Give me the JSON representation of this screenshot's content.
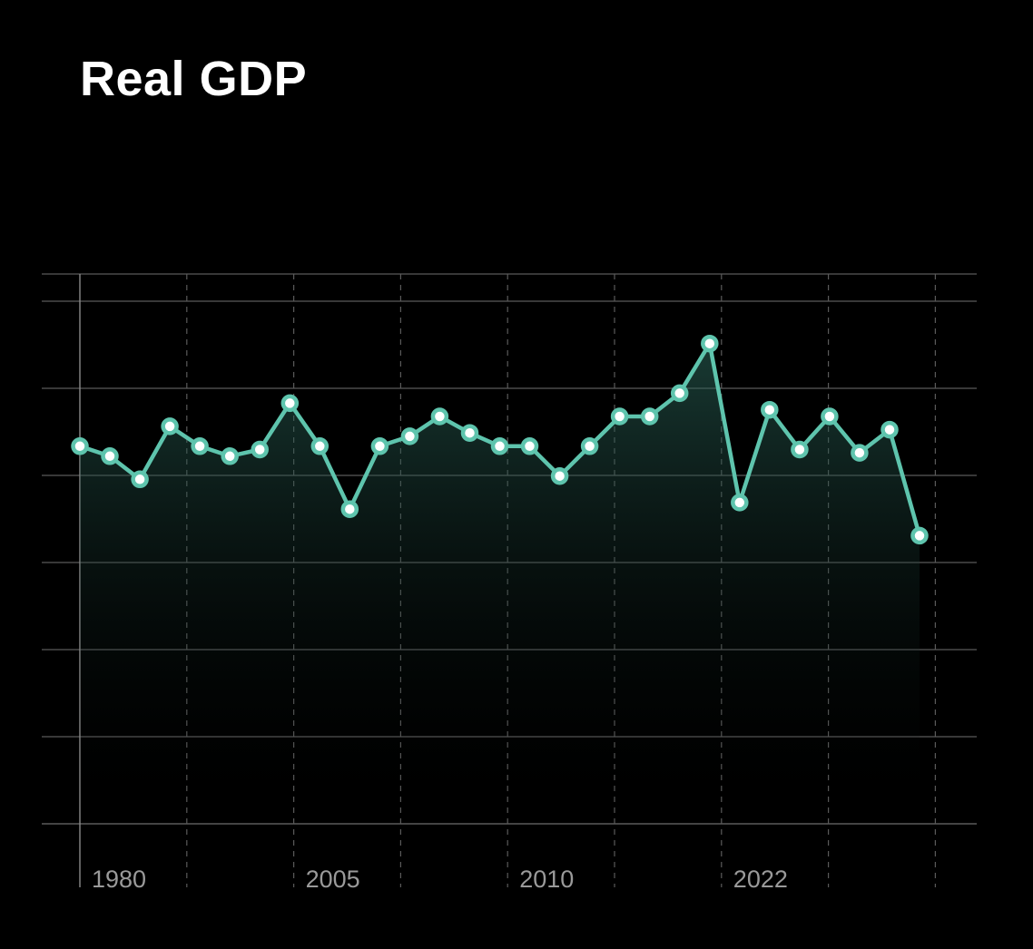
{
  "chart_data": {
    "type": "line",
    "title": "Real GDP",
    "xlabel": "",
    "ylabel": "",
    "x_tick_labels": [
      "1980",
      "",
      "2005",
      "",
      "2010",
      "",
      "2022",
      "",
      ""
    ],
    "values": [
      3.7,
      3.55,
      3.2,
      4.0,
      3.7,
      3.55,
      3.65,
      4.35,
      3.7,
      2.75,
      3.7,
      3.85,
      4.15,
      3.9,
      3.7,
      3.7,
      3.25,
      3.7,
      4.15,
      4.15,
      4.5,
      5.25,
      2.85,
      4.25,
      3.65,
      4.15,
      3.6,
      3.95,
      2.35
    ],
    "ylim": [
      -2.0,
      6.3
    ],
    "grid": true,
    "colors": {
      "line": "#5ec4ad",
      "marker_fill": "#ffffff",
      "area_top": "#2e6b5f",
      "grid": "#5a5a5a",
      "tick_label": "#9a9a9a",
      "title": "#ffffff"
    }
  }
}
